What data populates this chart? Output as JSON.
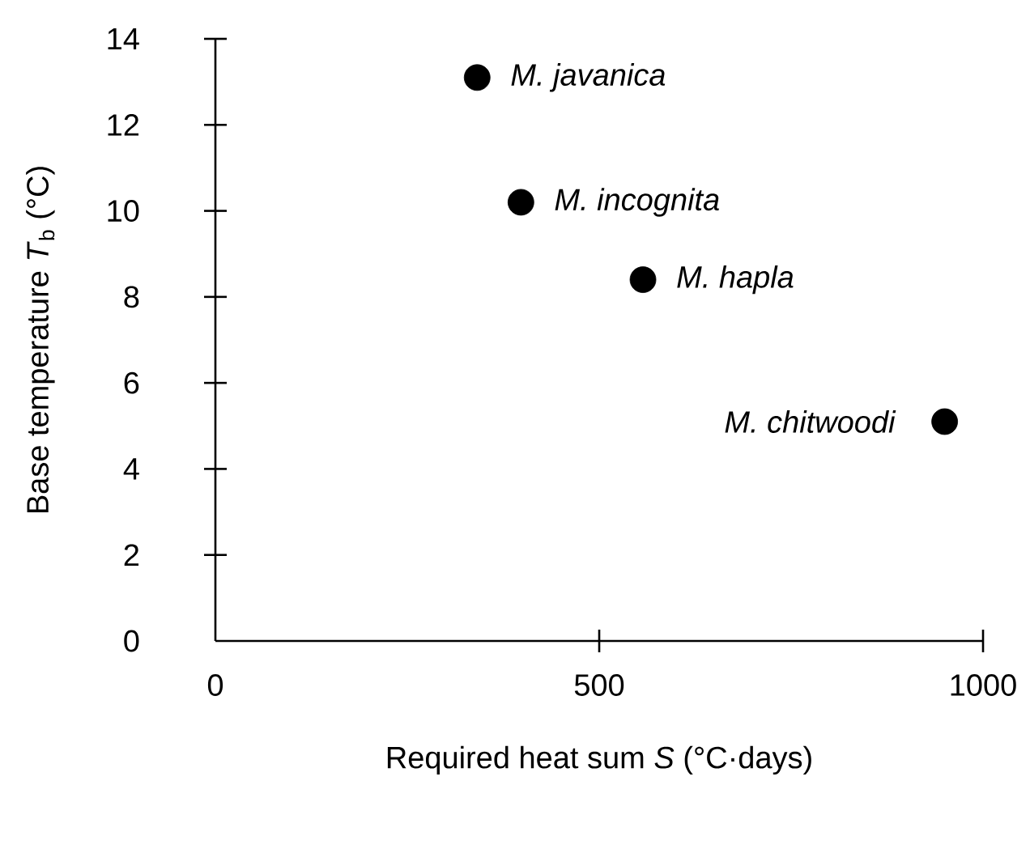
{
  "chart_data": {
    "type": "scatter",
    "xlabel": "Required heat sum *S* (°C·days)",
    "ylabel": "Base temperature *T*$_{b}$ (°C)",
    "x": [
      341,
      398,
      557,
      950
    ],
    "values": [
      13.1,
      10.2,
      8.4,
      5.1
    ],
    "color": "#000000",
    "grid": false,
    "xlim": [
      0,
      1000
    ],
    "xticks": [
      0,
      500,
      1000
    ],
    "ylim": [
      0,
      14
    ],
    "yticks": [
      0,
      2,
      4,
      6,
      8,
      10,
      12,
      14
    ],
    "annotations": [
      {
        "text": "M. javanica",
        "x": 341,
        "y": 13.1
      },
      {
        "text": "M. incognita",
        "x": 398,
        "y": 10.2
      },
      {
        "text": "M. hapla",
        "x": 557,
        "y": 8.4
      },
      {
        "text": "M. chitwoodi",
        "x": 950,
        "y": 5.1
      }
    ]
  }
}
